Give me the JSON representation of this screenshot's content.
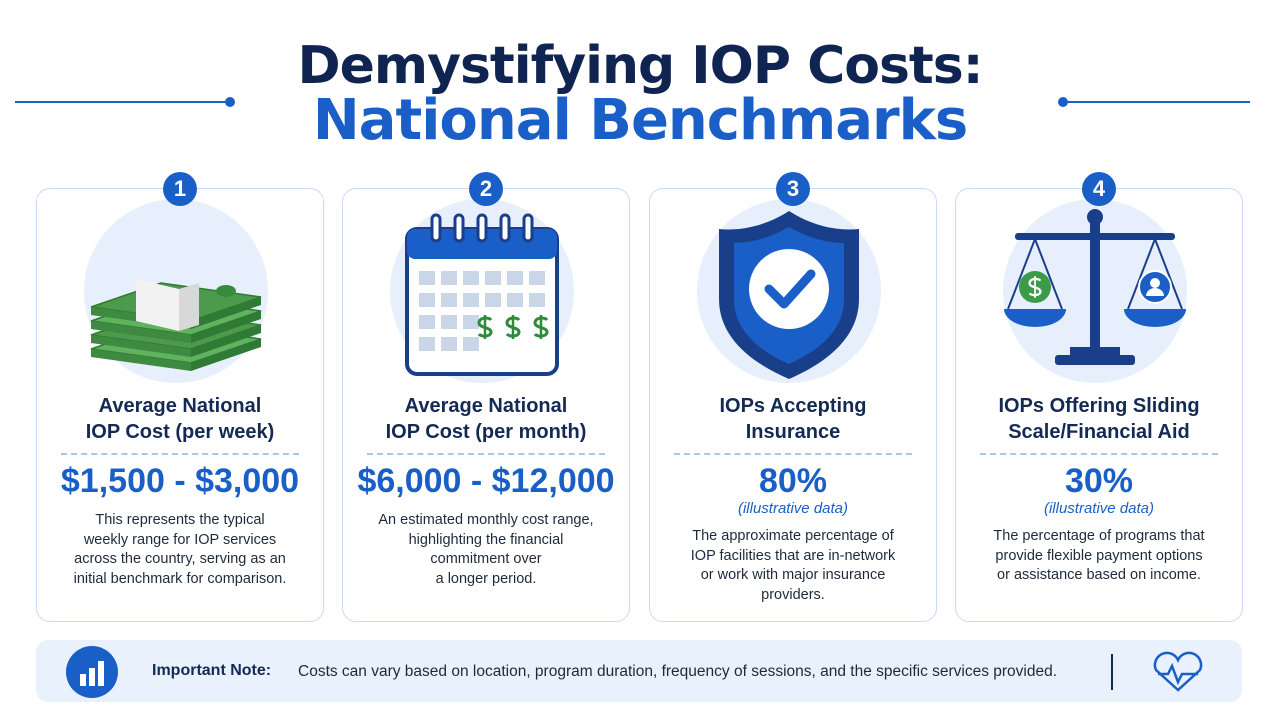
{
  "header": {
    "title_line1": "Demystifying IOP Costs:",
    "title_line2": "National Benchmarks"
  },
  "cards": [
    {
      "number": "1",
      "title": [
        "Average National",
        "IOP Cost (per week)"
      ],
      "value": "$1,500 - $3,000",
      "description": [
        "This represents the typical",
        "weekly range for IOP services",
        "across the country, serving as an",
        "initial benchmark for comparison."
      ]
    },
    {
      "number": "2",
      "title": [
        "Average National",
        "IOP Cost (per month)"
      ],
      "value": "$6,000 - $12,000",
      "description": [
        "An estimated monthly cost range,",
        "highlighting the financial",
        "commitment over",
        "a longer period."
      ]
    },
    {
      "number": "3",
      "title": [
        "IOPs Accepting",
        "Insurance"
      ],
      "value": "80%",
      "value_note": "(illustrative data)",
      "description": [
        "The approximate percentage of",
        "IOP facilities that are in-network",
        "or work with major insurance",
        "providers."
      ]
    },
    {
      "number": "4",
      "title": [
        "IOPs Offering Sliding",
        "Scale/Financial Aid"
      ],
      "value": "30%",
      "value_note": "(illustrative data)",
      "description": [
        "The percentage of programs that",
        "provide flexible payment options",
        "or assistance based on income."
      ]
    }
  ],
  "note": {
    "label": "Important Note:",
    "text": "Costs can vary based on location, program duration, frequency of sessions, and the specific services provided."
  }
}
